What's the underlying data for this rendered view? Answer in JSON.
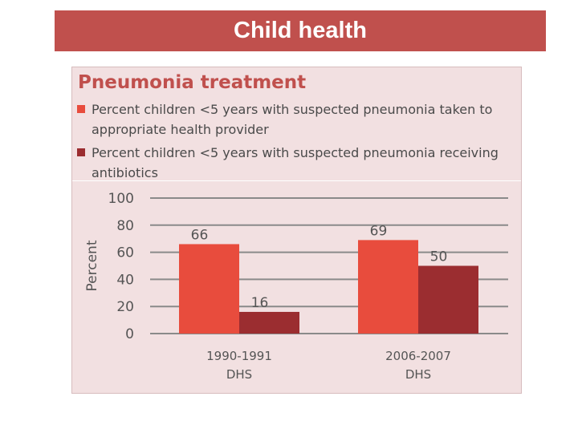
{
  "slide": {
    "title": "Child health"
  },
  "colors": {
    "header_bar": "#c0504d",
    "series_1": "#e84c3d",
    "series_2": "#9b2d30",
    "panel": "#f2e0e1"
  },
  "chart_data": {
    "type": "bar",
    "title": "Pneumonia treatment",
    "ylabel": "Percent",
    "xlabel": "",
    "ylim": [
      0,
      100
    ],
    "yticks": [
      0,
      20,
      40,
      60,
      80,
      100
    ],
    "grid": true,
    "legend_position": "top",
    "categories": [
      "1990-1991 DHS",
      "2006-2007 DHS"
    ],
    "category_lines": [
      [
        "1990-1991",
        "DHS"
      ],
      [
        "2006-2007",
        "DHS"
      ]
    ],
    "series": [
      {
        "name": "Percent children <5 years with suspected pneumonia taken to appropriate health provider",
        "values": [
          66,
          69
        ],
        "color": "#e84c3d"
      },
      {
        "name": "Percent children <5 years with suspected pneumonia receiving antibiotics",
        "values": [
          16,
          50
        ],
        "color": "#9b2d30"
      }
    ]
  }
}
